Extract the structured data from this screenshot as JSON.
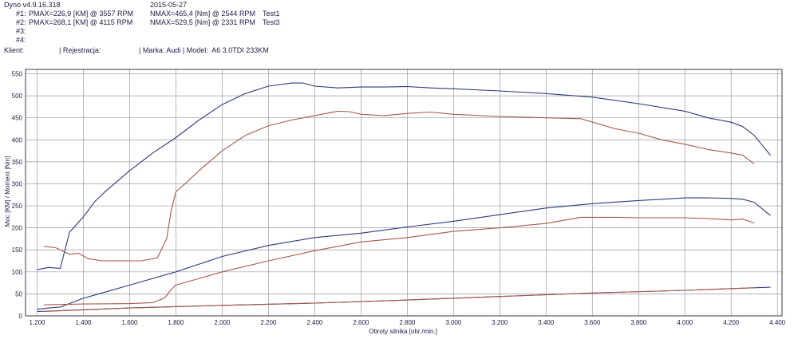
{
  "header": {
    "app_version": "Dyno v4.9.16.318",
    "date": "2015-05-27",
    "runs": [
      {
        "id": "#1:",
        "pmax": "PMAX=226,9 [KM] @ 3557 RPM",
        "nmax": "NMAX=465,4 [Nm] @ 2544 RPM",
        "name": "Test1"
      },
      {
        "id": "#2:",
        "pmax": "PMAX=268,1 [KM] @ 4115 RPM",
        "nmax": "NMAX=529,5 [Nm] @ 2331 RPM",
        "name": "Test3"
      },
      {
        "id": "#3:",
        "pmax": "",
        "nmax": "",
        "name": ""
      },
      {
        "id": "#4:",
        "pmax": "",
        "nmax": "",
        "name": ""
      }
    ],
    "client_label": "Klient:",
    "registration": "| Rejestracja:",
    "make_model": "| Marka: Audi | Model:  A6 3.0TDI 233KM"
  },
  "chart_data": {
    "type": "line",
    "xlabel": "Obroty silnika [obr./min.]",
    "ylabel": "Moc [KM] / Moment [Nm]",
    "xlim": [
      1150,
      4420
    ],
    "ylim": [
      0,
      560
    ],
    "xticks": [
      1200,
      1400,
      1600,
      1800,
      2000,
      2200,
      2400,
      2600,
      2800,
      3000,
      3200,
      3400,
      3600,
      3800,
      4000,
      4200,
      4400
    ],
    "xtick_labels": [
      "1.200",
      "1.400",
      "1.600",
      "1.800",
      "2.000",
      "2.200",
      "2.400",
      "2.600",
      "2.800",
      "3.000",
      "3.200",
      "3.400",
      "3.600",
      "3.800",
      "4.000",
      "4.200",
      "4.400"
    ],
    "yticks": [
      0,
      50,
      100,
      150,
      200,
      250,
      300,
      350,
      400,
      450,
      500,
      550
    ],
    "grid": true,
    "series": [
      {
        "color": "#2e3a7a",
        "x": [
          1200,
          1250,
          1300,
          1340,
          1400,
          1450,
          1500,
          1600,
          1700,
          1800,
          1900,
          2000,
          2100,
          2200,
          2300,
          2350,
          2400,
          2500,
          2600,
          2700,
          2800,
          2900,
          3000,
          3200,
          3400,
          3600,
          3800,
          4000,
          4100,
          4200,
          4250,
          4300,
          4370
        ],
        "y": [
          105,
          110,
          108,
          190,
          225,
          260,
          285,
          330,
          370,
          405,
          445,
          480,
          505,
          522,
          529,
          529,
          522,
          518,
          520,
          520,
          521,
          518,
          516,
          511,
          505,
          497,
          482,
          465,
          450,
          440,
          430,
          410,
          365
        ]
      },
      {
        "color": "#a55a4a",
        "x": [
          1230,
          1280,
          1340,
          1380,
          1420,
          1480,
          1550,
          1650,
          1720,
          1760,
          1780,
          1800,
          1850,
          1900,
          2000,
          2100,
          2200,
          2300,
          2400,
          2500,
          2550,
          2600,
          2700,
          2800,
          2900,
          3000,
          3200,
          3400,
          3550,
          3700,
          3800,
          3900,
          4000,
          4100,
          4200,
          4250,
          4300
        ],
        "y": [
          158,
          155,
          140,
          142,
          130,
          125,
          125,
          125,
          132,
          175,
          240,
          282,
          305,
          330,
          375,
          410,
          432,
          445,
          455,
          465,
          464,
          458,
          455,
          460,
          463,
          458,
          453,
          450,
          448,
          425,
          415,
          400,
          390,
          378,
          370,
          365,
          345
        ]
      },
      {
        "color": "#2e3a7a",
        "x": [
          1200,
          1250,
          1300,
          1350,
          1400,
          1500,
          1600,
          1800,
          2000,
          2200,
          2400,
          2600,
          2800,
          3000,
          3200,
          3400,
          3600,
          3800,
          4000,
          4100,
          4200,
          4250,
          4300,
          4370
        ],
        "y": [
          15,
          18,
          20,
          30,
          40,
          55,
          70,
          100,
          135,
          160,
          178,
          188,
          202,
          215,
          230,
          245,
          255,
          262,
          268,
          268,
          267,
          265,
          258,
          228
        ]
      },
      {
        "color": "#a55a4a",
        "x": [
          1230,
          1400,
          1600,
          1700,
          1750,
          1780,
          1800,
          1900,
          2000,
          2200,
          2400,
          2600,
          2800,
          3000,
          3200,
          3400,
          3550,
          3700,
          3800,
          4000,
          4100,
          4200,
          4250,
          4300
        ],
        "y": [
          25,
          27,
          28,
          30,
          40,
          60,
          70,
          85,
          100,
          125,
          148,
          168,
          178,
          192,
          200,
          210,
          224,
          224,
          223,
          223,
          221,
          218,
          220,
          211
        ]
      },
      {
        "color": "#2e3a7a",
        "x": [
          1200,
          1600,
          2000,
          2400,
          2800,
          3200,
          3600,
          4000,
          4370
        ],
        "y": [
          10,
          18,
          24,
          29,
          36,
          44,
          52,
          58,
          65
        ]
      },
      {
        "color": "#a55a4a",
        "x": [
          1230,
          1600,
          2000,
          2400,
          2800,
          3200,
          3600,
          4000,
          4300
        ],
        "y": [
          10,
          18,
          24,
          29,
          36,
          44,
          52,
          58,
          64
        ]
      }
    ]
  }
}
